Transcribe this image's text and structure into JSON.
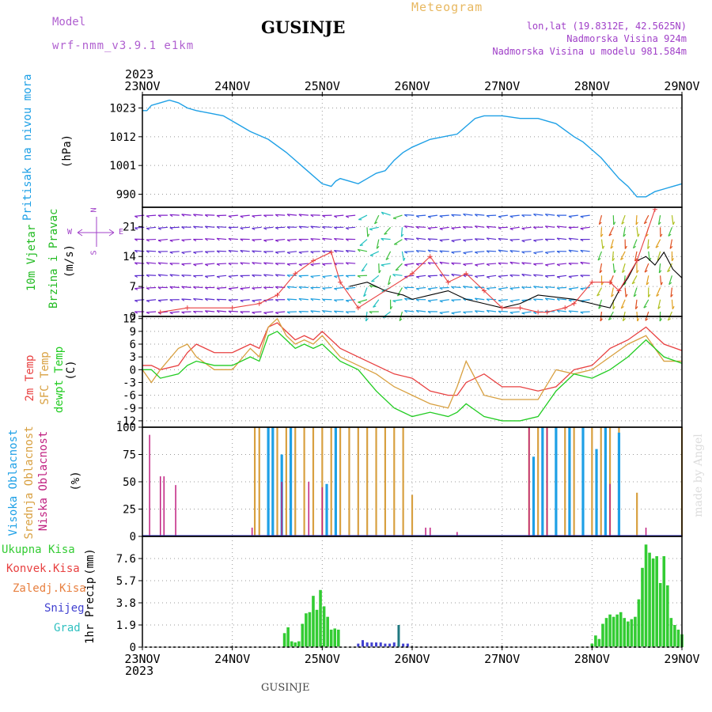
{
  "header": {
    "model_label": "Model",
    "model_name": "wrf-nmm_v3.9.1 e1km",
    "title": "GUSINJE",
    "meteogram": "Meteogram",
    "lonlat": "lon,lat (19.8312E, 42.5625N)",
    "elevation": "Nadmorska Visina 924m",
    "model_elevation": "Nadmorska Visina u modelu 981.584m"
  },
  "footer": {
    "station": "GUSINJE"
  },
  "watermark": "made by Angel",
  "colors": {
    "pressure": "#1ea0e6",
    "wind_label": "#22bb22",
    "purple": "#a040c8",
    "t2m": "#e84040",
    "sfc": "#d8a040",
    "dew": "#22cc22",
    "high_cloud": "#1ea0e6",
    "mid_cloud": "#d8a040",
    "low_cloud": "#c02080",
    "total_precip": "#33cc33",
    "conv_precip": "#e84040",
    "frozen_precip": "#e88040",
    "snow": "#4040d0",
    "hail": "#30c0c0"
  },
  "chart_data": [
    {
      "type": "line",
      "id": "pressure",
      "ylabel_name": "Pritisak na nivou mora",
      "ylabel_unit": "(hPa)",
      "yticks": [
        990,
        1001,
        1012,
        1023
      ],
      "ylim": [
        985,
        1028
      ],
      "x_start_label": "2023",
      "x_ticks": [
        "23NOV",
        "24NOV",
        "25NOV",
        "26NOV",
        "27NOV",
        "28NOV",
        "29NOV"
      ],
      "x_days": [
        0,
        6
      ],
      "grid": true,
      "series": [
        {
          "key": "mslp",
          "x": [
            0,
            0.05,
            0.1,
            0.2,
            0.3,
            0.4,
            0.5,
            0.6,
            0.75,
            0.9,
            1.0,
            1.2,
            1.4,
            1.6,
            1.8,
            2.0,
            2.1,
            2.15,
            2.2,
            2.3,
            2.4,
            2.5,
            2.6,
            2.7,
            2.8,
            2.9,
            3.0,
            3.2,
            3.35,
            3.5,
            3.6,
            3.7,
            3.8,
            4.0,
            4.2,
            4.4,
            4.6,
            4.8,
            4.9,
            5.0,
            5.1,
            5.2,
            5.3,
            5.4,
            5.5,
            5.6,
            5.7,
            5.8,
            5.9,
            6.0
          ],
          "values": [
            1022,
            1022,
            1024,
            1025,
            1026,
            1025,
            1023,
            1022,
            1021,
            1020,
            1018,
            1014,
            1011,
            1006,
            1000,
            994,
            993,
            995,
            996,
            995,
            994,
            996,
            998,
            999,
            1003,
            1006,
            1008,
            1011,
            1012,
            1013,
            1016,
            1019,
            1020,
            1020,
            1019,
            1019,
            1017,
            1012,
            1010,
            1007,
            1004,
            1000,
            996,
            993,
            989,
            989,
            991,
            992,
            993,
            994
          ]
        }
      ]
    },
    {
      "type": "line",
      "id": "wind",
      "ylabel_name_1": "10m Vjetar",
      "ylabel_name_2": "Brzina i Pravac",
      "ylabel_unit": "(m/s)",
      "yticks": [
        0,
        7,
        14,
        21
      ],
      "ylim": [
        0,
        25.5
      ],
      "compass": {
        "n": "N",
        "w": "W",
        "e": "E",
        "s": "S"
      },
      "grid": true,
      "series": [
        {
          "key": "speed",
          "x": [
            2.3,
            2.5,
            2.7,
            2.9,
            3.0,
            3.2,
            3.4,
            3.6,
            3.8,
            4.0,
            4.2,
            4.4,
            4.8,
            5.0,
            5.2,
            5.3,
            5.4,
            5.5,
            5.6,
            5.7,
            5.8,
            5.9,
            6.0
          ],
          "values": [
            7,
            8,
            6,
            5,
            4,
            5,
            6,
            4,
            3,
            2,
            3,
            5,
            4,
            3,
            2,
            6,
            9,
            13,
            14,
            12,
            15,
            11,
            9
          ]
        },
        {
          "key": "gust",
          "x": [
            0.2,
            0.5,
            1.0,
            1.3,
            1.5,
            1.7,
            1.9,
            2.1,
            2.2,
            2.4,
            3.0,
            3.2,
            3.4,
            3.6,
            3.8,
            4.0,
            4.2,
            4.4,
            4.5,
            4.7,
            4.8,
            5.0,
            5.2,
            5.3,
            5.5,
            5.7
          ],
          "values": [
            1,
            2,
            2,
            3,
            5,
            10,
            13,
            15,
            8,
            2,
            10,
            14,
            8,
            10,
            6,
            2,
            2,
            1,
            1,
            2,
            3,
            8,
            8,
            6,
            13,
            25
          ]
        }
      ]
    },
    {
      "type": "line",
      "id": "temperature",
      "ylabel_t2m": "2m Temp",
      "ylabel_sfc": "SFC Temp",
      "ylabel_dew": "dewpt Temp",
      "ylabel_unit": "(C)",
      "yticks": [
        -12,
        -9,
        -6,
        -3,
        0,
        3,
        6,
        9,
        12
      ],
      "ylim": [
        -13.5,
        12.5
      ],
      "grid": true,
      "series": [
        {
          "key": "t2m",
          "x": [
            0,
            0.1,
            0.2,
            0.4,
            0.5,
            0.6,
            0.8,
            1.0,
            1.2,
            1.3,
            1.4,
            1.5,
            1.6,
            1.7,
            1.8,
            1.9,
            2.0,
            2.2,
            2.4,
            2.6,
            2.8,
            3.0,
            3.2,
            3.4,
            3.5,
            3.6,
            3.8,
            4.0,
            4.2,
            4.4,
            4.6,
            4.8,
            5.0,
            5.2,
            5.4,
            5.6,
            5.8,
            6.0
          ],
          "values": [
            1,
            1,
            0,
            1,
            4,
            6,
            4,
            4,
            6,
            5,
            10,
            11,
            9,
            7,
            8,
            7,
            9,
            5,
            3,
            1,
            -1,
            -2,
            -5,
            -6,
            -6,
            -3,
            -1,
            -4,
            -4,
            -5,
            -4,
            0,
            1,
            5,
            7,
            10,
            6,
            4.5
          ]
        },
        {
          "key": "sfc",
          "x": [
            0,
            0.1,
            0.2,
            0.4,
            0.5,
            0.6,
            0.8,
            1.0,
            1.2,
            1.3,
            1.4,
            1.5,
            1.6,
            1.7,
            1.8,
            1.9,
            2.0,
            2.2,
            2.4,
            2.6,
            2.8,
            3.0,
            3.2,
            3.4,
            3.5,
            3.6,
            3.8,
            4.0,
            4.2,
            4.4,
            4.6,
            4.8,
            5.0,
            5.2,
            5.4,
            5.6,
            5.8,
            6.0
          ],
          "values": [
            0,
            -3,
            0,
            5,
            6,
            3,
            0,
            0,
            5,
            3,
            10,
            12,
            8,
            6,
            7,
            6,
            8,
            3,
            1,
            -1,
            -4,
            -6,
            -8,
            -9,
            -4,
            2,
            -6,
            -7,
            -7,
            -7,
            0,
            -1,
            0,
            3,
            6,
            8,
            2,
            2
          ]
        },
        {
          "key": "dew",
          "x": [
            0,
            0.1,
            0.2,
            0.4,
            0.5,
            0.6,
            0.8,
            1.0,
            1.2,
            1.3,
            1.4,
            1.5,
            1.6,
            1.7,
            1.8,
            1.9,
            2.0,
            2.2,
            2.4,
            2.6,
            2.8,
            3.0,
            3.2,
            3.4,
            3.5,
            3.6,
            3.8,
            4.0,
            4.2,
            4.4,
            4.6,
            4.8,
            5.0,
            5.2,
            5.4,
            5.6,
            5.8,
            6.0
          ],
          "values": [
            0,
            0,
            -2,
            -1,
            1,
            2,
            1,
            1,
            3,
            2,
            8,
            9,
            7,
            5,
            6,
            5,
            6,
            2,
            0,
            -5,
            -9,
            -11,
            -10,
            -11,
            -10,
            -8,
            -11,
            -12,
            -12,
            -11,
            -5,
            -1,
            -2,
            0,
            3,
            7,
            3,
            1.5
          ]
        }
      ]
    },
    {
      "type": "bar",
      "id": "cloud",
      "ylabel_high": "Visoka Oblacnost",
      "ylabel_mid": "Srednja Oblacnost",
      "ylabel_low": "Niska Oblacnost",
      "ylabel_unit": "(%)",
      "yticks": [
        0,
        25,
        50,
        75,
        100
      ],
      "ylim": [
        0,
        100
      ],
      "grid": true,
      "series": [
        {
          "key": "low",
          "x": [
            0.08,
            0.2,
            0.24,
            0.37,
            1.22,
            1.55,
            1.85,
            2.0,
            3.15,
            3.2,
            3.5,
            4.3,
            4.5,
            5.2,
            5.6
          ],
          "values": [
            93,
            55,
            55,
            47,
            8,
            50,
            50,
            45,
            8,
            8,
            4,
            100,
            100,
            48,
            8
          ]
        },
        {
          "key": "mid",
          "x": [
            1.25,
            1.3,
            1.5,
            1.6,
            1.7,
            1.8,
            1.9,
            2.0,
            2.1,
            2.2,
            2.3,
            2.4,
            2.5,
            2.6,
            2.7,
            2.8,
            2.9,
            3.0,
            4.3,
            4.4,
            4.5,
            4.6,
            4.7,
            4.8,
            4.9,
            5.0,
            5.1,
            5.2,
            5.3,
            5.5,
            6.0
          ],
          "values": [
            100,
            100,
            100,
            100,
            100,
            100,
            100,
            100,
            100,
            100,
            100,
            100,
            100,
            100,
            100,
            100,
            100,
            38,
            100,
            100,
            100,
            100,
            100,
            100,
            100,
            100,
            100,
            100,
            100,
            40,
            100
          ]
        },
        {
          "key": "high",
          "x": [
            1.4,
            1.45,
            1.55,
            1.65,
            2.05,
            2.15,
            4.35,
            4.45,
            4.6,
            4.75,
            4.9,
            5.05,
            5.15,
            5.3
          ],
          "values": [
            100,
            100,
            75,
            100,
            48,
            100,
            73,
            100,
            100,
            100,
            100,
            80,
            100,
            95
          ]
        }
      ]
    },
    {
      "type": "bar",
      "id": "precip",
      "ylabel_name": "1hr Precip",
      "ylabel_unit": "(mm)",
      "legend_total": "Ukupna Kisa",
      "legend_conv": "Konvek.Kisa",
      "legend_frozen": "Zaledj.Kisa",
      "legend_snow": "Snijeg",
      "legend_hail": "Grad",
      "yticks": [
        0,
        1.9,
        3.8,
        5.7,
        7.6
      ],
      "ylim": [
        0,
        9.5
      ],
      "x_end_label": "2023",
      "grid": true,
      "series": [
        {
          "key": "total",
          "x": [
            1.58,
            1.62,
            1.66,
            1.7,
            1.74,
            1.78,
            1.82,
            1.86,
            1.9,
            1.94,
            1.98,
            2.02,
            2.06,
            2.1,
            2.14,
            2.18,
            5.0,
            5.04,
            5.08,
            5.12,
            5.16,
            5.2,
            5.24,
            5.28,
            5.32,
            5.36,
            5.4,
            5.44,
            5.48,
            5.52,
            5.56,
            5.6,
            5.64,
            5.68,
            5.72,
            5.76,
            5.8,
            5.84,
            5.88,
            5.92,
            5.96,
            6.0
          ],
          "values": [
            1.2,
            1.7,
            0.5,
            0.4,
            0.5,
            2.0,
            2.9,
            3.0,
            4.4,
            3.2,
            4.9,
            3.5,
            2.6,
            1.5,
            1.6,
            1.5,
            0.3,
            1.0,
            0.7,
            2.0,
            2.5,
            2.8,
            2.6,
            2.8,
            3.0,
            2.5,
            2.2,
            2.4,
            2.6,
            4.1,
            6.8,
            8.8,
            8.1,
            7.6,
            7.8,
            5.5,
            7.8,
            5.3,
            2.5,
            1.9,
            1.5,
            1.1
          ]
        },
        {
          "key": "snow",
          "x": [
            2.4,
            2.45,
            2.5,
            2.55,
            2.6,
            2.65,
            2.7,
            2.75,
            2.8,
            2.85,
            2.9,
            2.95
          ],
          "values": [
            0.3,
            0.6,
            0.4,
            0.4,
            0.4,
            0.4,
            0.3,
            0.3,
            0.4,
            0.3,
            0.3,
            0.3
          ]
        },
        {
          "key": "hail",
          "x": [
            2.85
          ],
          "values": [
            1.9
          ]
        }
      ]
    }
  ]
}
